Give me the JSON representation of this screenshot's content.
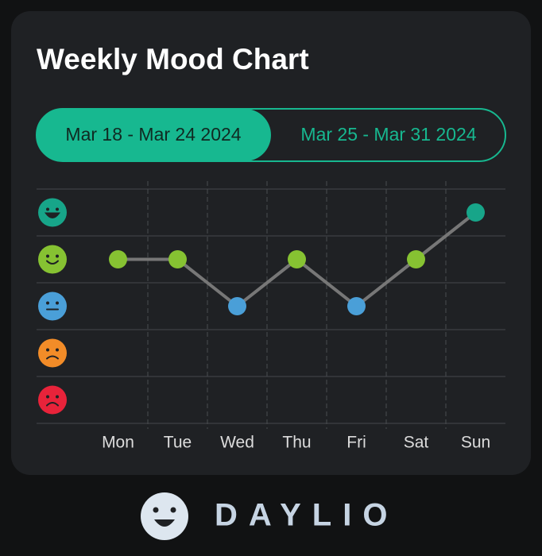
{
  "tabs": [
    "Mar 18 - Mar 24 2024",
    "Mar 25 - Mar 31 2024"
  ],
  "brand": "DAYLIO",
  "chart_data": {
    "type": "line",
    "title": "Weekly Mood Chart",
    "categories": [
      "Mon",
      "Tue",
      "Wed",
      "Thu",
      "Fri",
      "Sat",
      "Sun"
    ],
    "values": [
      4,
      4,
      3,
      4,
      3,
      4,
      5
    ],
    "color": "#777777",
    "level_colors": [
      "#e8233a",
      "#f28c28",
      "#4a9fd8",
      "#86c232",
      "#17a589"
    ],
    "ylim": [
      0.5,
      5.5
    ],
    "yticks": [
      1,
      2,
      3,
      4,
      5
    ]
  }
}
